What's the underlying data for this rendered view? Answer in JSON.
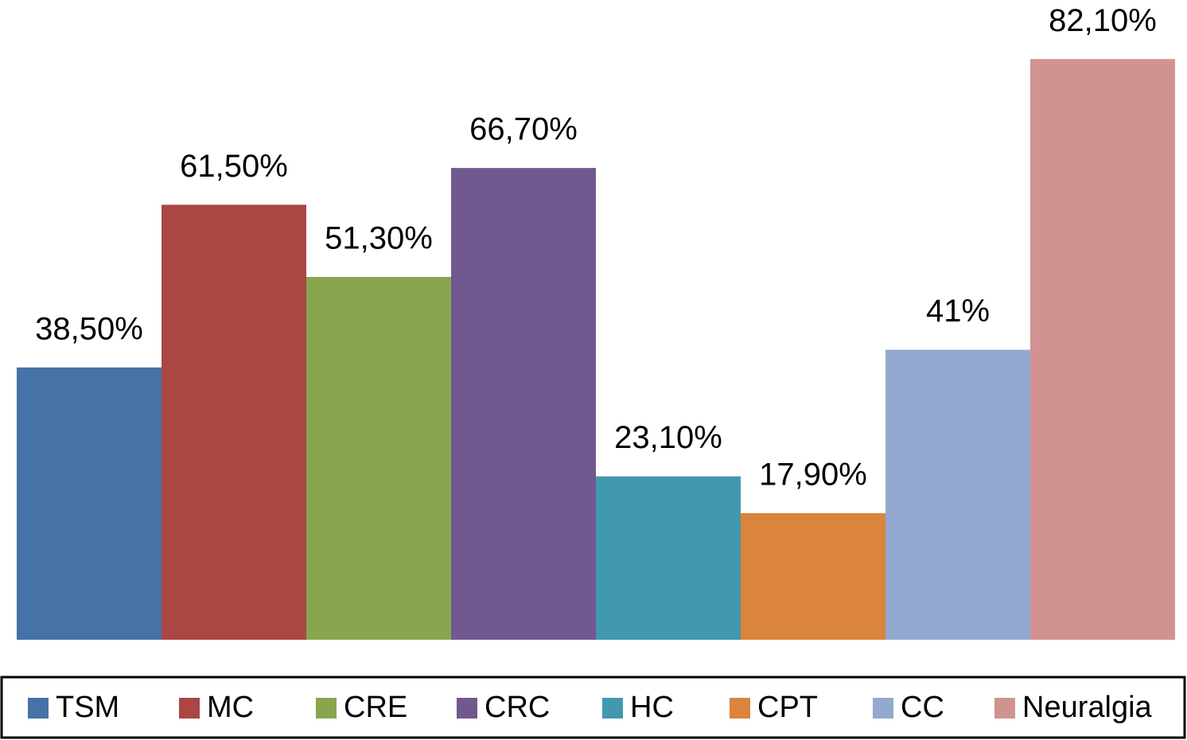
{
  "chart_data": {
    "type": "bar",
    "series": [
      {
        "name": "TSM",
        "color": "#4572a7",
        "values": [
          38.5
        ],
        "value_labels": [
          "38,50%"
        ]
      },
      {
        "name": "MC",
        "color": "#aa4643",
        "values": [
          61.5
        ],
        "value_labels": [
          "61,50%"
        ]
      },
      {
        "name": "CRE",
        "color": "#89a54e",
        "values": [
          51.3
        ],
        "value_labels": [
          "51,30%"
        ]
      },
      {
        "name": "CRC",
        "color": "#71588f",
        "values": [
          66.7
        ],
        "value_labels": [
          "66,70%"
        ]
      },
      {
        "name": "HC",
        "color": "#4198af",
        "values": [
          23.1
        ],
        "value_labels": [
          "23,10%"
        ]
      },
      {
        "name": "CPT",
        "color": "#db843d",
        "values": [
          17.9
        ],
        "value_labels": [
          "17,90%"
        ]
      },
      {
        "name": "CC",
        "color": "#93a9cf",
        "values": [
          41
        ],
        "value_labels": [
          "41%"
        ]
      },
      {
        "name": "Neuralgia",
        "color": "#d19392",
        "values": [
          82.1
        ],
        "value_labels": [
          "82,10%"
        ]
      }
    ],
    "ylim": [
      0,
      90
    ],
    "legend": "bottom"
  }
}
